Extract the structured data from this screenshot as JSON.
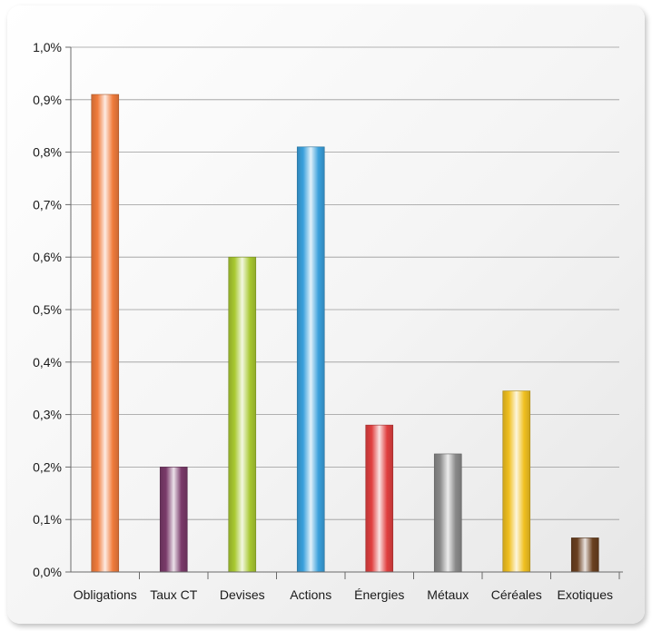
{
  "chart_data": {
    "type": "bar",
    "title": "",
    "xlabel": "",
    "ylabel": "",
    "categories": [
      "Obligations",
      "Taux CT",
      "Devises",
      "Actions",
      "Énergies",
      "Métaux",
      "Céréales",
      "Exotiques"
    ],
    "values": [
      0.91,
      0.2,
      0.6,
      0.81,
      0.28,
      0.225,
      0.345,
      0.065
    ],
    "colors": [
      "#f07c3c",
      "#7a3a6a",
      "#a8c830",
      "#3aa0dc",
      "#e04040",
      "#8a8a8a",
      "#f0c020",
      "#6a4020"
    ],
    "ylim": [
      0,
      1.0
    ],
    "yticks": [
      0,
      0.1,
      0.2,
      0.3,
      0.4,
      0.5,
      0.6,
      0.7,
      0.8,
      0.9,
      1.0
    ],
    "ytick_labels": [
      "0,0%",
      "0,1%",
      "0,2%",
      "0,3%",
      "0,4%",
      "0,5%",
      "0,6%",
      "0,7%",
      "0,8%",
      "0,9%",
      "1,0%"
    ],
    "grid": true,
    "legend": "none"
  }
}
